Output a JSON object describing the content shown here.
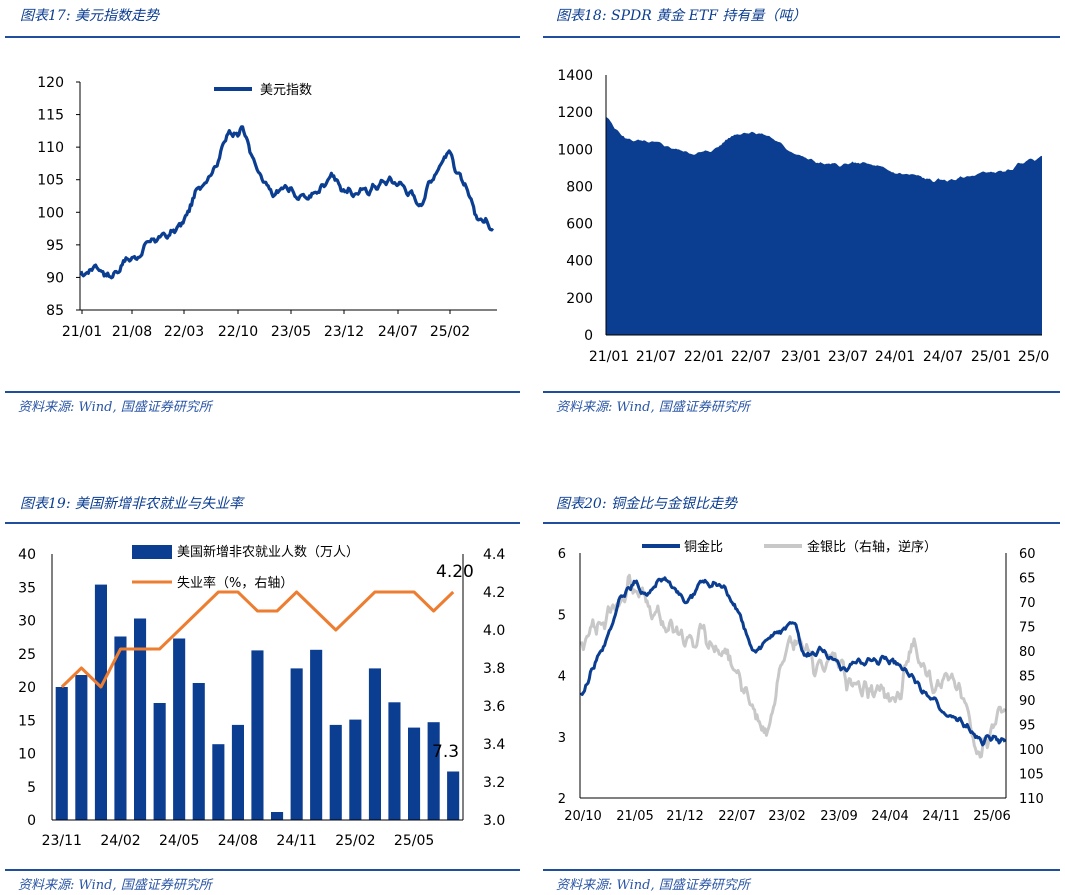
{
  "panels": {
    "p17": {
      "title": "图表17: 美元指数走势",
      "source": "资料来源: Wind, 国盛证券研究所"
    },
    "p18": {
      "title": "图表18: SPDR 黄金 ETF 持有量（吨）",
      "source": "资料来源: Wind, 国盛证券研究所"
    },
    "p19": {
      "title": "图表19: 美国新增非农就业与失业率",
      "source": "资料来源: Wind, 国盛证券研究所"
    },
    "p20": {
      "title": "图表20: 铜金比与金银比走势",
      "source": "资料来源: Wind, 国盛证券研究所"
    }
  },
  "colors": {
    "navy": "#0b3d91",
    "orange": "#ed7d31",
    "gray": "#c8c8c8",
    "rule": "#1f4e9c"
  },
  "chart_data": [
    {
      "id": "dxy",
      "type": "line",
      "title": "美元指数",
      "legend": [
        "美元指数"
      ],
      "ylim": [
        85,
        120
      ],
      "yticks": [
        85,
        90,
        95,
        100,
        105,
        110,
        115,
        120
      ],
      "xticks": [
        "21/01",
        "21/08",
        "22/03",
        "22/10",
        "23/05",
        "23/12",
        "24/07",
        "25/02"
      ],
      "x_months": [
        "21/01",
        "21/03",
        "21/05",
        "21/07",
        "21/09",
        "21/11",
        "22/01",
        "22/03",
        "22/05",
        "22/07",
        "22/09",
        "22/10",
        "22/11",
        "23/01",
        "23/03",
        "23/05",
        "23/07",
        "23/09",
        "23/11",
        "24/01",
        "24/03",
        "24/05",
        "24/07",
        "24/09",
        "24/11",
        "25/01",
        "25/03",
        "25/05",
        "25/07"
      ],
      "values": [
        90,
        92,
        90,
        92.5,
        93.5,
        96,
        96.5,
        98.5,
        104,
        106.5,
        112,
        113,
        106,
        102.5,
        104,
        102,
        103,
        106,
        103,
        103,
        104,
        105,
        104,
        101,
        106,
        109.5,
        104,
        99,
        98
      ]
    },
    {
      "id": "spdr",
      "type": "area",
      "title": "SPDR 黄金 ETF 持有量（吨）",
      "ylim": [
        0,
        1400
      ],
      "yticks": [
        0,
        200,
        400,
        600,
        800,
        1000,
        1200,
        1400
      ],
      "xticks": [
        "21/01",
        "21/07",
        "22/01",
        "22/07",
        "23/01",
        "23/07",
        "24/01",
        "24/07",
        "25/01",
        "25/06"
      ],
      "x_months": [
        "21/01",
        "21/03",
        "21/05",
        "21/07",
        "21/09",
        "21/11",
        "22/01",
        "22/03",
        "22/04",
        "22/05",
        "22/07",
        "22/09",
        "22/11",
        "23/01",
        "23/04",
        "23/07",
        "23/10",
        "24/01",
        "24/02",
        "24/05",
        "24/07",
        "24/10",
        "25/01",
        "25/03",
        "25/06"
      ],
      "values": [
        1175,
        1060,
        1040,
        1030,
        995,
        975,
        1000,
        1080,
        1095,
        1070,
        1000,
        950,
        920,
        915,
        930,
        905,
        870,
        860,
        830,
        835,
        855,
        880,
        875,
        935,
        960
      ]
    },
    {
      "id": "nfp",
      "type": "bar+line",
      "series": [
        {
          "name": "美国新增非农就业人数（万人）",
          "axis": "left",
          "values": [
            20,
            21.8,
            35.4,
            27.6,
            30.3,
            17.6,
            27.3,
            20.6,
            11.4,
            14.3,
            25.5,
            1.2,
            22.8,
            25.6,
            14.3,
            15.1,
            22.8,
            17.7,
            13.9,
            14.7,
            7.3
          ]
        },
        {
          "name": "失业率（%，右轴）",
          "axis": "right",
          "values": [
            3.7,
            3.8,
            3.7,
            3.9,
            3.9,
            3.9,
            4.0,
            4.1,
            4.2,
            4.2,
            4.1,
            4.1,
            4.2,
            4.1,
            4.0,
            4.1,
            4.2,
            4.2,
            4.2,
            4.1,
            4.2
          ]
        }
      ],
      "categories": [
        "23/11",
        "23/12",
        "24/01",
        "24/02",
        "24/03",
        "24/04",
        "24/05",
        "24/06",
        "24/07",
        "24/08",
        "24/09",
        "24/10",
        "24/11",
        "24/12",
        "25/01",
        "25/02",
        "25/03",
        "25/04",
        "25/05",
        "25/06",
        "25/07"
      ],
      "xticks": [
        "23/11",
        "24/02",
        "24/05",
        "24/08",
        "24/11",
        "25/02",
        "25/05"
      ],
      "ylim_left": [
        0,
        40
      ],
      "ylim_right": [
        3.0,
        4.4
      ],
      "yticks_left": [
        0,
        5,
        10,
        15,
        20,
        25,
        30,
        35,
        40
      ],
      "yticks_right": [
        "3.0",
        "3.2",
        "3.4",
        "3.6",
        "3.8",
        "4.0",
        "4.2",
        "4.4"
      ],
      "annotations": {
        "last_bar": "7.3",
        "last_rate": "4.20"
      }
    },
    {
      "id": "ratios",
      "type": "line",
      "series": [
        {
          "name": "铜金比",
          "axis": "left",
          "values": [
            3.6,
            4.2,
            4.6,
            5.3,
            5.5,
            5.3,
            5.6,
            5.4,
            5.2,
            5.5,
            5.5,
            5.4,
            5.0,
            4.3,
            4.6,
            4.7,
            4.9,
            4.3,
            4.4,
            4.2,
            4.1,
            4.25,
            4.2,
            4.3,
            4.2,
            4.0,
            3.7,
            3.5,
            3.3,
            3.2,
            2.9,
            3.0,
            2.9
          ]
        },
        {
          "name": "金银比（右轴，逆序）",
          "axis": "right",
          "values": [
            78,
            75,
            72,
            70,
            66,
            70,
            73,
            76,
            78,
            76,
            80,
            80,
            86,
            92,
            98,
            86,
            78,
            80,
            84,
            80,
            86,
            86,
            88,
            88,
            90,
            78,
            84,
            88,
            86,
            90,
            102,
            96,
            92
          ]
        }
      ],
      "xticks": [
        "20/10",
        "21/05",
        "21/12",
        "22/07",
        "23/02",
        "23/09",
        "24/04",
        "24/11",
        "25/06"
      ],
      "ylim_left": [
        2,
        6
      ],
      "ylim_right_reversed": [
        60,
        110
      ],
      "yticks_left": [
        2,
        3,
        4,
        5,
        6
      ],
      "yticks_right": [
        60,
        65,
        70,
        75,
        80,
        85,
        90,
        95,
        100,
        105,
        110
      ]
    }
  ]
}
